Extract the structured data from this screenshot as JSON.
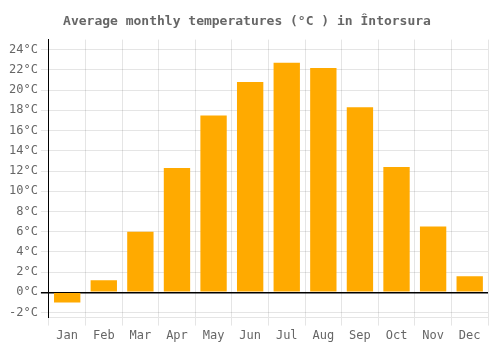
{
  "chart_data": {
    "type": "bar",
    "title": "Average monthly temperatures (°C ) in Întorsura",
    "categories": [
      "Jan",
      "Feb",
      "Mar",
      "Apr",
      "May",
      "Jun",
      "Jul",
      "Aug",
      "Sep",
      "Oct",
      "Nov",
      "Dec"
    ],
    "values": [
      -1.0,
      1.2,
      6.0,
      12.3,
      17.5,
      20.8,
      22.7,
      22.2,
      18.3,
      12.4,
      6.5,
      1.6
    ],
    "color": "#FFAA00",
    "ylim": [
      -2.5,
      25
    ],
    "yticks": [
      {
        "value": -2,
        "label": "-2°C"
      },
      {
        "value": 0,
        "label": "0°C"
      },
      {
        "value": 2,
        "label": "2°C"
      },
      {
        "value": 4,
        "label": "4°C"
      },
      {
        "value": 6,
        "label": "6°C"
      },
      {
        "value": 8,
        "label": "8°C"
      },
      {
        "value": 10,
        "label": "10°C"
      },
      {
        "value": 12,
        "label": "12°C"
      },
      {
        "value": 14,
        "label": "14°C"
      },
      {
        "value": 16,
        "label": "16°C"
      },
      {
        "value": 18,
        "label": "18°C"
      },
      {
        "value": 20,
        "label": "20°C"
      },
      {
        "value": 22,
        "label": "22°C"
      },
      {
        "value": 24,
        "label": "24°C"
      }
    ],
    "grid": true
  }
}
